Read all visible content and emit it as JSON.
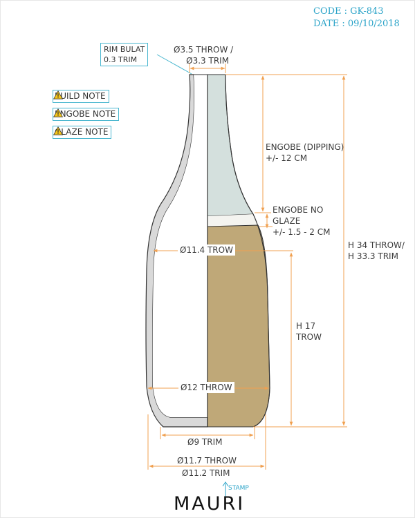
{
  "header": {
    "code": "CODE : GK-843",
    "date": "DATE : 09/10/2018"
  },
  "callouts": {
    "rim_line1": "RIM BULAT",
    "rim_line2": "0.3 TRIM",
    "neck_line1": "Ø3.5 THROW /",
    "neck_line2": "Ø3.3 TRIM"
  },
  "notes": [
    {
      "label": "BUILD NOTE",
      "icon": "warning-icon"
    },
    {
      "label": "ENGOBE NOTE",
      "icon": "warning-icon"
    },
    {
      "label": "GLAZE NOTE",
      "icon": "warning-icon"
    }
  ],
  "dimensions": {
    "engobe_dipping_1": "ENGOBE (DIPPING)",
    "engobe_dipping_2": "+/- 12 CM",
    "engobe_no_glaze_1": "ENGOBE NO",
    "engobe_no_glaze_2": "GLAZE",
    "engobe_no_glaze_3": "+/- 1.5 - 2 CM",
    "shoulder_dia": "Ø11.4 TROW",
    "height_total_1": "H 34 THROW/",
    "height_total_2": "H 33.3 TRIM",
    "height_lower_1": "H 17",
    "height_lower_2": "TROW",
    "belly_dia": "Ø12 THROW",
    "base_dia": "Ø9 TRIM",
    "foot_throw": "Ø11.7 THROW",
    "foot_trim": "Ø11.2 TRIM"
  },
  "footer": {
    "stamp": "STAMP",
    "logo": "MAURI"
  },
  "colors": {
    "accent": "#2aa3c8",
    "dimension": "#f0a050",
    "engobe": "#d4e0dd",
    "glaze": "#bfa878",
    "wall": "#d9d9d9",
    "outline": "#333333"
  }
}
